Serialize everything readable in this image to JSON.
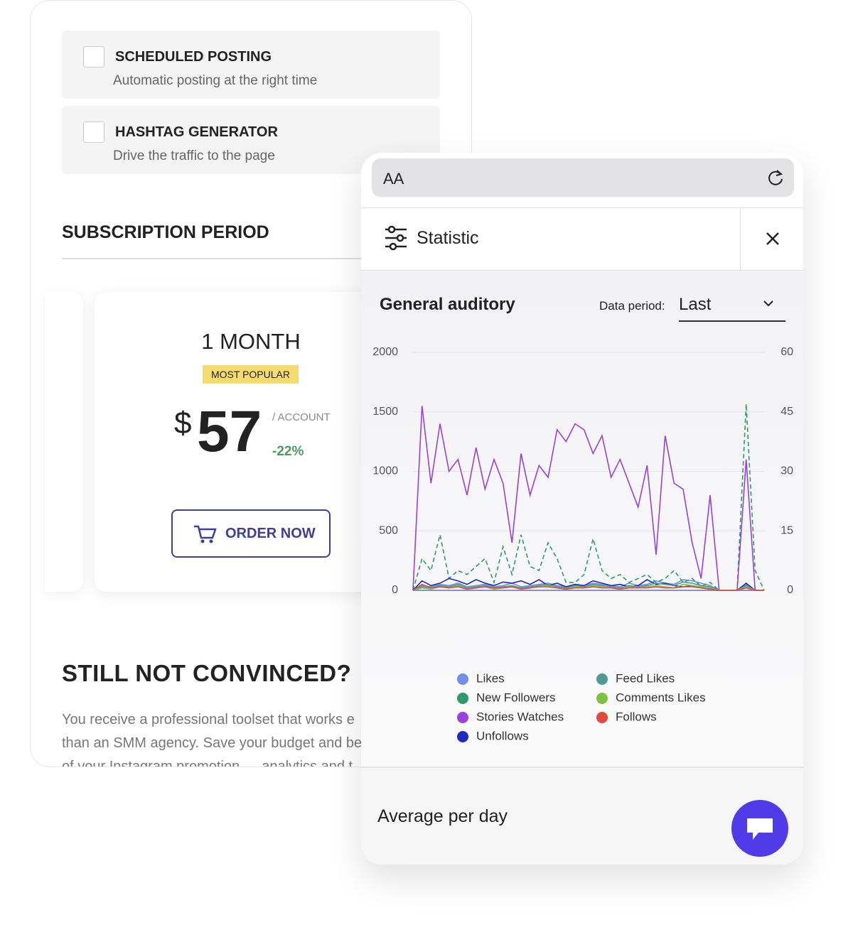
{
  "features": [
    {
      "title": "SCHEDULED POSTING",
      "subtitle": "Automatic posting at the right time"
    },
    {
      "title": "HASHTAG GENERATOR",
      "subtitle": "Drive the traffic to the page"
    }
  ],
  "subscription": {
    "heading": "SUBSCRIPTION PERIOD",
    "plan": "1 MONTH",
    "badge": "MOST POPULAR",
    "currency": "$",
    "price": "57",
    "unit": "/ ACCOUNT",
    "discount": "-22%",
    "button": "ORDER NOW"
  },
  "convince": {
    "heading": "STILL NOT CONVINCED?",
    "lines": [
      "You receive a professional toolset that works e",
      "than an SMM agency. Save your budget and be",
      "of your Instagram promotion — analytics and t"
    ]
  },
  "browser": {
    "font_button": "AA"
  },
  "panel": {
    "title": "Statistic",
    "section": "General auditory",
    "period_label": "Data period:",
    "period_value": "Last",
    "footer": "Average per day"
  },
  "chart_data": {
    "type": "line",
    "ylim": [
      0,
      2000
    ],
    "yticks": [
      0,
      500,
      1000,
      1500,
      2000
    ],
    "y2lim": [
      0,
      60
    ],
    "y2ticks": [
      0,
      15,
      30,
      45,
      60
    ],
    "grid": true,
    "series": [
      {
        "name": "Likes",
        "color": "#6f8fe8",
        "values": [
          0,
          40,
          30,
          50,
          40,
          60,
          30,
          40,
          50,
          30,
          40,
          60,
          30,
          40,
          50,
          60,
          40,
          30,
          50,
          40,
          60,
          50,
          40,
          30,
          60,
          40,
          50,
          80,
          60,
          50,
          90,
          80,
          60,
          40,
          0,
          0,
          0,
          50,
          0,
          0
        ]
      },
      {
        "name": "New Followers",
        "color": "#2e9a6a",
        "style": "dashed",
        "axis": "y2",
        "values": [
          0,
          8,
          5,
          14,
          3,
          5,
          4,
          6,
          8,
          2,
          11,
          4,
          14,
          6,
          5,
          12,
          8,
          2,
          2,
          4,
          13,
          5,
          3,
          4,
          2,
          3,
          4,
          2,
          3,
          5,
          2,
          3,
          1,
          2,
          0,
          0,
          0,
          47,
          5,
          0
        ]
      },
      {
        "name": "Stories Watches",
        "color": "#9b3fe0",
        "values": [
          0,
          1550,
          900,
          1400,
          1000,
          1100,
          800,
          1200,
          850,
          1100,
          900,
          400,
          1150,
          800,
          1050,
          950,
          1350,
          1250,
          1400,
          1350,
          1150,
          1300,
          950,
          1100,
          900,
          700,
          1050,
          300,
          1300,
          900,
          850,
          400,
          100,
          800,
          0,
          0,
          0,
          1100,
          0,
          0
        ]
      },
      {
        "name": "Unfollows",
        "color": "#1f2bbf",
        "values": [
          0,
          80,
          40,
          60,
          100,
          80,
          50,
          90,
          60,
          40,
          70,
          60,
          80,
          50,
          90,
          40,
          60,
          30,
          50,
          40,
          80,
          60,
          40,
          50,
          30,
          40,
          90,
          50,
          60,
          40,
          30,
          40,
          20,
          10,
          0,
          0,
          0,
          60,
          0,
          0
        ]
      },
      {
        "name": "Feed Likes",
        "color": "#4e9a94",
        "values": [
          0,
          30,
          20,
          40,
          30,
          50,
          20,
          30,
          40,
          20,
          30,
          40,
          20,
          30,
          40,
          50,
          30,
          20,
          40,
          30,
          50,
          40,
          30,
          20,
          40,
          30,
          40,
          60,
          50,
          40,
          70,
          60,
          40,
          30,
          0,
          0,
          0,
          40,
          0,
          0
        ]
      },
      {
        "name": "Comments Likes",
        "color": "#7cc43f",
        "values": [
          0,
          20,
          10,
          30,
          20,
          40,
          10,
          20,
          30,
          10,
          20,
          30,
          10,
          20,
          30,
          40,
          20,
          10,
          30,
          20,
          40,
          30,
          20,
          10,
          30,
          20,
          30,
          40,
          30,
          20,
          50,
          40,
          30,
          20,
          0,
          0,
          0,
          30,
          0,
          0
        ]
      },
      {
        "name": "Follows",
        "color": "#e04a3a",
        "values": [
          0,
          50,
          20,
          30,
          20,
          30,
          10,
          20,
          30,
          20,
          20,
          30,
          10,
          20,
          30,
          30,
          20,
          10,
          20,
          20,
          30,
          20,
          20,
          10,
          20,
          20,
          20,
          30,
          20,
          20,
          30,
          30,
          20,
          10,
          0,
          0,
          0,
          20,
          0,
          0
        ]
      }
    ]
  }
}
